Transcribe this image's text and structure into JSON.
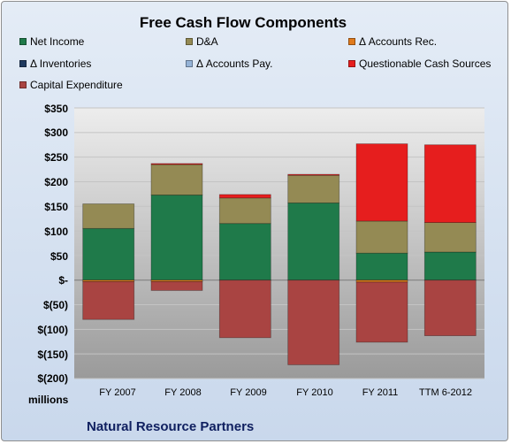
{
  "chart_data": {
    "type": "bar",
    "stacked": true,
    "title": "Free Cash Flow Components",
    "categories": [
      "FY 2007",
      "FY 2008",
      "FY 2009",
      "FY 2010",
      "FY 2011",
      "TTM 6-2012"
    ],
    "series": [
      {
        "name": "Net Income",
        "color": "#1f7a4a",
        "values": [
          105,
          173,
          115,
          157,
          55,
          57
        ]
      },
      {
        "name": "D&A",
        "color": "#948a54",
        "values": [
          50,
          62,
          52,
          56,
          65,
          60
        ]
      },
      {
        "name": "Δ Accounts Rec.",
        "color": "#e07a1c",
        "values": [
          -3,
          -3,
          0,
          0,
          -4,
          0
        ]
      },
      {
        "name": "Δ Inventories",
        "color": "#1f3a5f",
        "values": [
          0,
          0,
          0,
          0,
          0,
          0
        ]
      },
      {
        "name": "Δ Accounts Pay.",
        "color": "#95b3d7",
        "values": [
          0,
          0,
          0,
          0,
          0,
          0
        ]
      },
      {
        "name": "Questionable Cash Sources",
        "color": "#e61e1e",
        "values": [
          0,
          2,
          7,
          2,
          157,
          158
        ]
      },
      {
        "name": "Capital Expenditure",
        "color": "#a94442",
        "values": [
          -77,
          -18,
          -117,
          -172,
          -122,
          -113
        ]
      }
    ],
    "ylim": [
      -200,
      350
    ],
    "yticks": [
      350,
      300,
      250,
      200,
      150,
      100,
      50,
      0,
      -50,
      -100,
      -150,
      -200
    ],
    "ytick_labels": [
      "$350",
      "$300",
      "$250",
      "$200",
      "$150",
      "$100",
      "$50",
      "$-",
      "$(50)",
      "$(100)",
      "$(150)",
      "$(200)"
    ],
    "unit_label": "millions",
    "grid": true,
    "legend_position": "top"
  },
  "footer": "Natural Resource Partners"
}
